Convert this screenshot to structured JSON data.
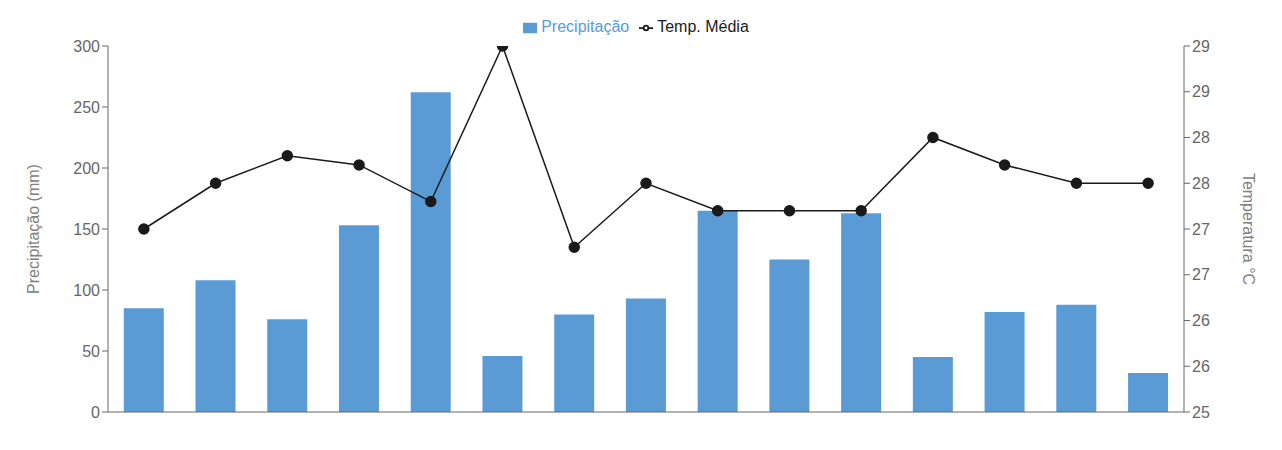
{
  "chart_data": {
    "type": "bar",
    "categories": [
      null,
      null,
      null,
      null,
      null,
      null,
      null,
      null,
      null,
      null,
      null,
      null,
      null,
      null,
      null
    ],
    "series": [
      {
        "name": "Precipitação",
        "type": "bar",
        "color": "#5B9BD5",
        "values": [
          85,
          108,
          76,
          153,
          262,
          46,
          80,
          93,
          165,
          125,
          163,
          45,
          82,
          88,
          32
        ]
      },
      {
        "name": "Temp. Média",
        "type": "line",
        "color": "#1a1a1a",
        "marker": "circle",
        "axis": "y2",
        "values": [
          27.0,
          27.5,
          27.8,
          27.7,
          27.3,
          29.0,
          26.8,
          27.5,
          27.2,
          27.2,
          27.2,
          28.0,
          27.7,
          27.5,
          27.5
        ]
      }
    ],
    "ylabel": "Precipitação (mm)",
    "y2label": "Temperatura °C",
    "ylim": [
      0,
      300
    ],
    "yticks": [
      0,
      50,
      100,
      150,
      200,
      250,
      300
    ],
    "y2lim": [
      25.0,
      29.0
    ],
    "y2ticks": [
      25,
      {
        "value": 25.5,
        "label": "26"
      },
      26,
      {
        "value": 26.5,
        "label": "27"
      },
      27,
      {
        "value": 27.5,
        "label": "28"
      },
      28,
      {
        "value": 28.5,
        "label": "29"
      },
      29
    ],
    "legend": "top",
    "grid": false
  }
}
